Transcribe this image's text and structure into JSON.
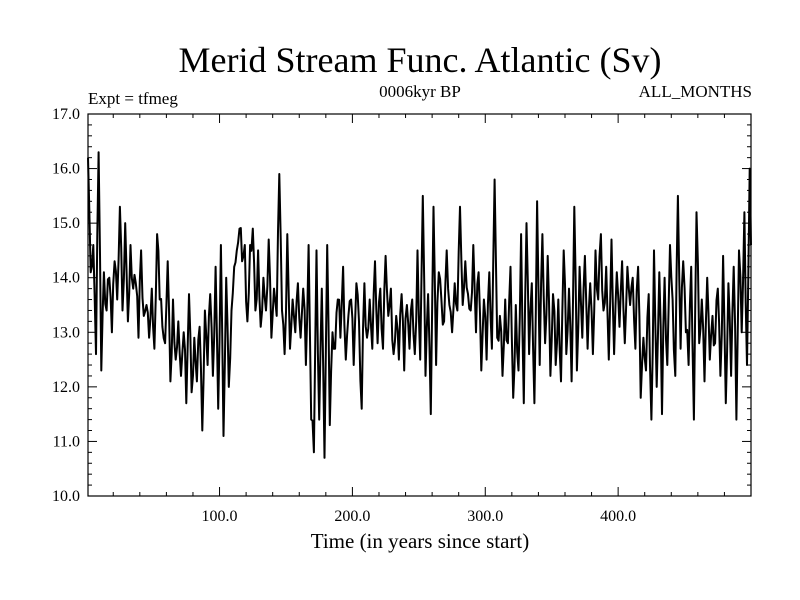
{
  "chart_data": {
    "type": "line",
    "title": "Merid Stream Func. Atlantic (Sv)",
    "subtitle_left": "Expt = tfmeg",
    "subtitle_center": "0006kyr BP",
    "subtitle_right": "ALL_MONTHS",
    "xlabel": "Time (in years since start)",
    "ylabel": "",
    "xlim": [
      1,
      500
    ],
    "ylim": [
      10.0,
      17.0
    ],
    "xticks": [
      100,
      200,
      300,
      400
    ],
    "xtick_labels": [
      "100.0",
      "200.0",
      "300.0",
      "400.0"
    ],
    "yticks": [
      10,
      11,
      12,
      13,
      14,
      15,
      16,
      17
    ],
    "ytick_labels": [
      "10.0",
      "11.0",
      "12.0",
      "13.0",
      "14.0",
      "15.0",
      "16.0",
      "17.0"
    ],
    "series": [
      {
        "name": "Merid Stream Func. Atlantic",
        "x_start": 1,
        "x_step": 1,
        "keypoints": [
          [
            1,
            16.2
          ],
          [
            3,
            14.1
          ],
          [
            5,
            14.6
          ],
          [
            7,
            12.6
          ],
          [
            9,
            16.3
          ],
          [
            11,
            12.3
          ],
          [
            13,
            14.1
          ],
          [
            15,
            13.4
          ],
          [
            17,
            14.0
          ],
          [
            19,
            13.0
          ],
          [
            21,
            14.3
          ],
          [
            23,
            13.6
          ],
          [
            25,
            15.3
          ],
          [
            27,
            13.4
          ],
          [
            29,
            15.0
          ],
          [
            31,
            13.2
          ],
          [
            33,
            14.6
          ],
          [
            35,
            13.8
          ],
          [
            37,
            13.9
          ],
          [
            39,
            12.9
          ],
          [
            41,
            14.5
          ],
          [
            43,
            13.3
          ],
          [
            45,
            13.5
          ],
          [
            47,
            12.9
          ],
          [
            49,
            13.8
          ],
          [
            51,
            12.7
          ],
          [
            53,
            14.8
          ],
          [
            55,
            13.6
          ],
          [
            57,
            13.1
          ],
          [
            59,
            12.8
          ],
          [
            61,
            14.3
          ],
          [
            63,
            12.1
          ],
          [
            65,
            13.6
          ],
          [
            67,
            12.5
          ],
          [
            69,
            13.2
          ],
          [
            71,
            12.2
          ],
          [
            73,
            13.0
          ],
          [
            75,
            11.7
          ],
          [
            77,
            13.7
          ],
          [
            79,
            11.9
          ],
          [
            81,
            12.9
          ],
          [
            83,
            12.1
          ],
          [
            85,
            13.1
          ],
          [
            87,
            11.2
          ],
          [
            89,
            13.4
          ],
          [
            91,
            12.4
          ],
          [
            93,
            13.7
          ],
          [
            95,
            12.2
          ],
          [
            97,
            14.2
          ],
          [
            99,
            11.6
          ],
          [
            101,
            14.6
          ],
          [
            103,
            11.1
          ],
          [
            105,
            14.0
          ],
          [
            107,
            12.0
          ],
          [
            109,
            13.4
          ],
          [
            111,
            14.2
          ],
          [
            113,
            14.5
          ],
          [
            115,
            14.9
          ],
          [
            117,
            14.3
          ],
          [
            119,
            14.6
          ],
          [
            121,
            13.2
          ],
          [
            123,
            14.6
          ],
          [
            125,
            14.9
          ],
          [
            127,
            13.4
          ],
          [
            129,
            14.5
          ],
          [
            131,
            13.1
          ],
          [
            133,
            14.0
          ],
          [
            135,
            13.4
          ],
          [
            137,
            14.7
          ],
          [
            139,
            12.9
          ],
          [
            141,
            13.8
          ],
          [
            143,
            13.3
          ],
          [
            145,
            15.9
          ],
          [
            147,
            13.4
          ],
          [
            149,
            12.6
          ],
          [
            151,
            14.8
          ],
          [
            153,
            12.7
          ],
          [
            155,
            13.6
          ],
          [
            157,
            13.0
          ],
          [
            159,
            13.9
          ],
          [
            161,
            12.9
          ],
          [
            163,
            13.8
          ],
          [
            165,
            12.4
          ],
          [
            167,
            14.6
          ],
          [
            169,
            11.4
          ],
          [
            171,
            10.8
          ],
          [
            173,
            14.5
          ],
          [
            175,
            11.4
          ],
          [
            177,
            13.8
          ],
          [
            179,
            10.7
          ],
          [
            181,
            14.6
          ],
          [
            183,
            11.3
          ],
          [
            185,
            13.0
          ],
          [
            187,
            12.7
          ],
          [
            189,
            13.6
          ],
          [
            191,
            12.9
          ],
          [
            193,
            14.2
          ],
          [
            195,
            12.5
          ],
          [
            197,
            13.3
          ],
          [
            199,
            13.6
          ],
          [
            201,
            12.4
          ],
          [
            203,
            13.9
          ],
          [
            205,
            13.2
          ],
          [
            207,
            11.6
          ],
          [
            209,
            13.9
          ],
          [
            211,
            12.9
          ],
          [
            213,
            13.6
          ],
          [
            215,
            12.7
          ],
          [
            217,
            14.3
          ],
          [
            219,
            12.8
          ],
          [
            221,
            13.8
          ],
          [
            223,
            12.7
          ],
          [
            225,
            14.4
          ],
          [
            227,
            13.3
          ],
          [
            229,
            13.8
          ],
          [
            231,
            12.6
          ],
          [
            233,
            13.3
          ],
          [
            235,
            12.5
          ],
          [
            237,
            13.7
          ],
          [
            239,
            12.3
          ],
          [
            241,
            13.5
          ],
          [
            243,
            12.7
          ],
          [
            245,
            13.6
          ],
          [
            247,
            12.6
          ],
          [
            249,
            14.5
          ],
          [
            251,
            12.5
          ],
          [
            253,
            15.5
          ],
          [
            255,
            12.2
          ],
          [
            257,
            13.7
          ],
          [
            259,
            11.5
          ],
          [
            261,
            15.3
          ],
          [
            263,
            12.4
          ],
          [
            265,
            14.1
          ],
          [
            267,
            13.6
          ],
          [
            269,
            13.2
          ],
          [
            271,
            14.5
          ],
          [
            273,
            13.5
          ],
          [
            275,
            13.0
          ],
          [
            277,
            13.9
          ],
          [
            279,
            13.4
          ],
          [
            281,
            15.3
          ],
          [
            283,
            13.5
          ],
          [
            285,
            14.3
          ],
          [
            287,
            13.7
          ],
          [
            289,
            13.4
          ],
          [
            291,
            14.6
          ],
          [
            293,
            13.0
          ],
          [
            295,
            14.1
          ],
          [
            297,
            12.3
          ],
          [
            299,
            13.6
          ],
          [
            301,
            12.5
          ],
          [
            303,
            14.1
          ],
          [
            305,
            12.7
          ],
          [
            307,
            15.8
          ],
          [
            309,
            12.9
          ],
          [
            311,
            13.3
          ],
          [
            313,
            12.2
          ],
          [
            315,
            13.6
          ],
          [
            317,
            12.8
          ],
          [
            319,
            14.2
          ],
          [
            321,
            11.8
          ],
          [
            323,
            13.5
          ],
          [
            325,
            12.3
          ],
          [
            327,
            14.8
          ],
          [
            329,
            11.7
          ],
          [
            331,
            15.0
          ],
          [
            333,
            12.6
          ],
          [
            335,
            13.9
          ],
          [
            337,
            11.7
          ],
          [
            339,
            15.4
          ],
          [
            341,
            12.4
          ],
          [
            343,
            14.8
          ],
          [
            345,
            12.8
          ],
          [
            347,
            14.4
          ],
          [
            349,
            12.2
          ],
          [
            351,
            13.7
          ],
          [
            353,
            12.4
          ],
          [
            355,
            13.6
          ],
          [
            357,
            12.1
          ],
          [
            359,
            14.5
          ],
          [
            361,
            12.6
          ],
          [
            363,
            13.8
          ],
          [
            365,
            12.1
          ],
          [
            367,
            15.3
          ],
          [
            369,
            12.3
          ],
          [
            371,
            14.2
          ],
          [
            373,
            12.9
          ],
          [
            375,
            14.4
          ],
          [
            377,
            12.7
          ],
          [
            379,
            13.9
          ],
          [
            381,
            12.6
          ],
          [
            383,
            14.5
          ],
          [
            385,
            13.6
          ],
          [
            387,
            14.8
          ],
          [
            389,
            13.4
          ],
          [
            391,
            14.2
          ],
          [
            393,
            12.5
          ],
          [
            395,
            14.7
          ],
          [
            397,
            12.6
          ],
          [
            399,
            14.1
          ],
          [
            401,
            13.1
          ],
          [
            403,
            14.3
          ],
          [
            405,
            12.8
          ],
          [
            407,
            14.2
          ],
          [
            409,
            13.5
          ],
          [
            411,
            14.0
          ],
          [
            413,
            12.7
          ],
          [
            415,
            14.2
          ],
          [
            417,
            11.8
          ],
          [
            419,
            12.9
          ],
          [
            421,
            12.3
          ],
          [
            423,
            13.7
          ],
          [
            425,
            11.4
          ],
          [
            427,
            14.5
          ],
          [
            429,
            12.0
          ],
          [
            431,
            14.1
          ],
          [
            433,
            11.5
          ],
          [
            435,
            14.0
          ],
          [
            437,
            12.4
          ],
          [
            439,
            14.6
          ],
          [
            441,
            13.6
          ],
          [
            443,
            12.2
          ],
          [
            445,
            15.5
          ],
          [
            447,
            12.7
          ],
          [
            449,
            14.3
          ],
          [
            451,
            13.0
          ],
          [
            453,
            12.4
          ],
          [
            455,
            14.2
          ],
          [
            457,
            11.4
          ],
          [
            459,
            15.2
          ],
          [
            461,
            12.8
          ],
          [
            463,
            13.6
          ],
          [
            465,
            12.1
          ],
          [
            467,
            14.0
          ],
          [
            469,
            12.5
          ],
          [
            471,
            13.3
          ],
          [
            473,
            12.8
          ],
          [
            475,
            13.8
          ],
          [
            477,
            12.2
          ],
          [
            479,
            14.4
          ],
          [
            481,
            11.7
          ],
          [
            483,
            13.9
          ],
          [
            485,
            12.2
          ],
          [
            487,
            14.2
          ],
          [
            489,
            11.4
          ],
          [
            491,
            14.5
          ],
          [
            493,
            13.0
          ],
          [
            495,
            15.2
          ],
          [
            497,
            12.4
          ],
          [
            499,
            16.0
          ],
          [
            500,
            14.6
          ]
        ],
        "noise_amplitude": 0.35
      }
    ]
  }
}
